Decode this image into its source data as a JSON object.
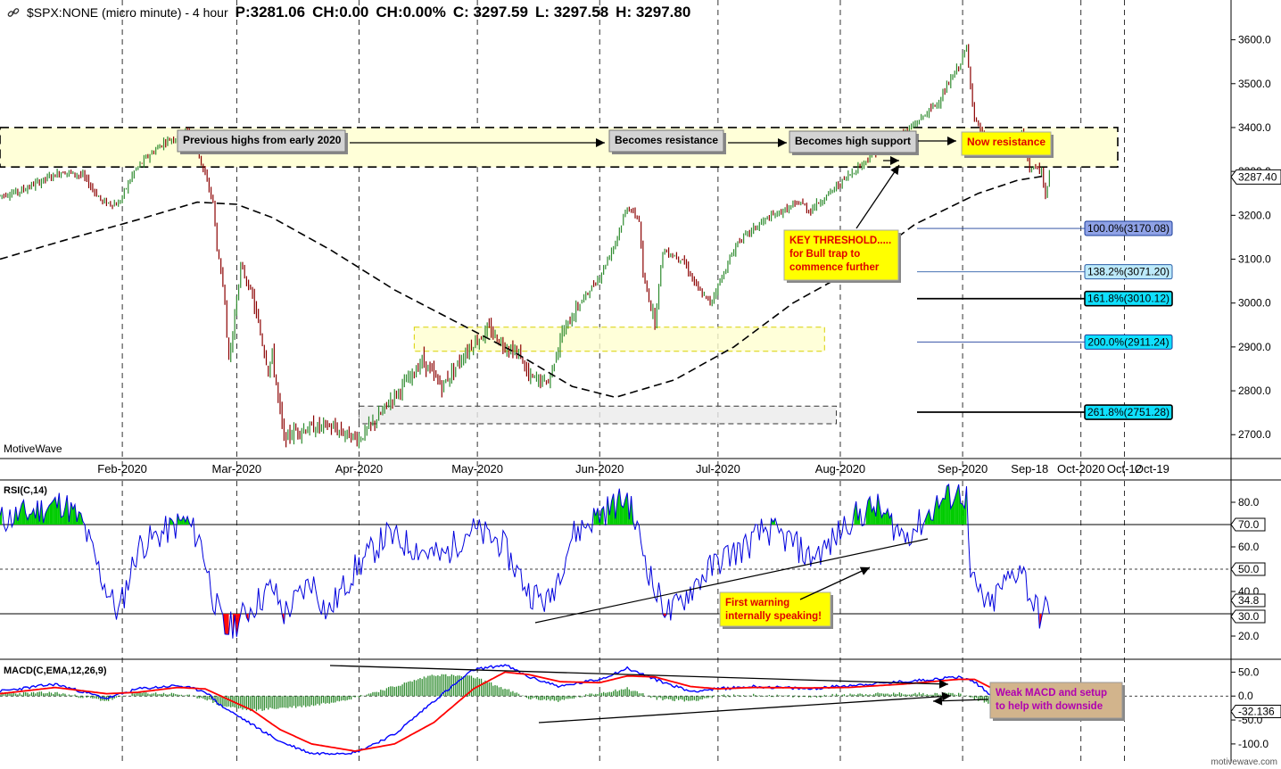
{
  "header": {
    "symbol": "$SPX:NONE (micro minute) - 4 hour",
    "p": "P:3281.06",
    "ch": "CH:0.00",
    "chpct": "CH:0.00%",
    "c": "C: 3297.59",
    "l": "L: 3297.58",
    "h": "H: 3297.80"
  },
  "brand": "MotiveWave",
  "site": "motivewave.com",
  "colors": {
    "price_up": "#2e8b2e",
    "price_down": "#8b0000",
    "rsi_line": "#0000dd",
    "rsi_overbought": "#00cc00",
    "rsi_oversold": "#ff0000",
    "macd_line": "#0000ff",
    "signal_line": "#ff0000",
    "histogram": "#2e8b2e",
    "callout_yellow": "#ffff00",
    "callout_gray": "#d3d3d3",
    "callout_tan": "#d2b48c"
  },
  "chart_data": [
    {
      "type": "candlestick",
      "panel": "price",
      "x_ticks": [
        "Feb-2020",
        "Mar-2020",
        "Apr-2020",
        "May-2020",
        "Jun-2020",
        "Jul-2020",
        "Aug-2020",
        "Sep-2020",
        "Sep-18",
        "Oct-2020",
        "Oct-12",
        "Oct-19"
      ],
      "y_ticks": [
        2700,
        2800,
        2900,
        3000,
        3100,
        3200,
        3300,
        3400,
        3500,
        3600
      ],
      "ylim": [
        2670,
        3650
      ],
      "price_path": [
        [
          "2020-01-01",
          3245
        ],
        [
          "2020-01-06",
          3255
        ],
        [
          "2020-01-13",
          3285
        ],
        [
          "2020-01-17",
          3300
        ],
        [
          "2020-01-22",
          3290
        ],
        [
          "2020-01-27",
          3230
        ],
        [
          "2020-01-31",
          3225
        ],
        [
          "2020-02-04",
          3300
        ],
        [
          "2020-02-07",
          3330
        ],
        [
          "2020-02-12",
          3370
        ],
        [
          "2020-02-14",
          3375
        ],
        [
          "2020-02-17",
          3390
        ],
        [
          "2020-02-19",
          3385
        ],
        [
          "2020-02-21",
          3320
        ],
        [
          "2020-02-24",
          3230
        ],
        [
          "2020-02-25",
          3125
        ],
        [
          "2020-02-27",
          3010
        ],
        [
          "2020-02-28",
          2860
        ],
        [
          "2020-03-02",
          3085
        ],
        [
          "2020-03-05",
          3015
        ],
        [
          "2020-03-06",
          2970
        ],
        [
          "2020-03-09",
          2850
        ],
        [
          "2020-03-10",
          2880
        ],
        [
          "2020-03-12",
          2750
        ],
        [
          "2020-03-13",
          2690
        ],
        [
          "2020-03-16",
          2710
        ],
        [
          "2020-03-24",
          2720
        ],
        [
          "2020-04-01",
          2690
        ],
        [
          "2020-04-06",
          2740
        ],
        [
          "2020-04-09",
          2780
        ],
        [
          "2020-04-14",
          2830
        ],
        [
          "2020-04-17",
          2870
        ],
        [
          "2020-04-22",
          2810
        ],
        [
          "2020-04-29",
          2900
        ],
        [
          "2020-05-04",
          2940
        ],
        [
          "2020-05-07",
          2910
        ],
        [
          "2020-05-12",
          2880
        ],
        [
          "2020-05-14",
          2830
        ],
        [
          "2020-05-19",
          2820
        ],
        [
          "2020-05-22",
          2920
        ],
        [
          "2020-05-27",
          3000
        ],
        [
          "2020-06-01",
          3060
        ],
        [
          "2020-06-05",
          3140
        ],
        [
          "2020-06-08",
          3220
        ],
        [
          "2020-06-11",
          3190
        ],
        [
          "2020-06-12",
          3060
        ],
        [
          "2020-06-15",
          2960
        ],
        [
          "2020-06-17",
          3120
        ],
        [
          "2020-06-22",
          3100
        ],
        [
          "2020-06-26",
          3030
        ],
        [
          "2020-06-29",
          3000
        ],
        [
          "2020-07-06",
          3140
        ],
        [
          "2020-07-13",
          3190
        ],
        [
          "2020-07-22",
          3230
        ],
        [
          "2020-07-24",
          3210
        ],
        [
          "2020-07-28",
          3240
        ],
        [
          "2020-08-03",
          3290
        ],
        [
          "2020-08-12",
          3360
        ],
        [
          "2020-08-19",
          3400
        ],
        [
          "2020-08-26",
          3460
        ],
        [
          "2020-08-31",
          3540
        ],
        [
          "2020-09-02",
          3580
        ],
        [
          "2020-09-03",
          3500
        ],
        [
          "2020-09-04",
          3420
        ],
        [
          "2020-09-08",
          3350
        ],
        [
          "2020-09-10",
          3380
        ],
        [
          "2020-09-14",
          3360
        ],
        [
          "2020-09-16",
          3390
        ],
        [
          "2020-09-18",
          3310
        ],
        [
          "2020-09-21",
          3300
        ],
        [
          "2020-09-22",
          3240
        ],
        [
          "2020-09-23",
          3290
        ]
      ],
      "moving_average": [
        [
          "2020-01-01",
          3100
        ],
        [
          "2020-01-20",
          3150
        ],
        [
          "2020-02-05",
          3190
        ],
        [
          "2020-02-20",
          3230
        ],
        [
          "2020-03-01",
          3225
        ],
        [
          "2020-03-10",
          3195
        ],
        [
          "2020-03-25",
          3120
        ],
        [
          "2020-04-10",
          3030
        ],
        [
          "2020-04-25",
          2960
        ],
        [
          "2020-05-10",
          2890
        ],
        [
          "2020-05-25",
          2810
        ],
        [
          "2020-06-05",
          2785
        ],
        [
          "2020-06-20",
          2825
        ],
        [
          "2020-07-05",
          2900
        ],
        [
          "2020-07-20",
          3000
        ],
        [
          "2020-08-05",
          3080
        ],
        [
          "2020-08-20",
          3180
        ],
        [
          "2020-09-05",
          3250
        ],
        [
          "2020-09-15",
          3280
        ],
        [
          "2020-09-22",
          3290
        ]
      ],
      "resistance_zone": {
        "from": 3310,
        "to": 3400
      },
      "zones": [
        {
          "from_date": "2020-04-15",
          "to_date": "2020-07-28",
          "low": 2890,
          "high": 2945
        },
        {
          "from_date": "2020-04-01",
          "to_date": "2020-07-31",
          "low": 2725,
          "high": 2765
        }
      ],
      "price_markers": [
        "3287.40"
      ],
      "fib_levels": [
        {
          "label": "100.0%(3170.08)",
          "value": 3170.08
        },
        {
          "label": "138.2%(3071.20)",
          "value": 3071.2
        },
        {
          "label": "161.8%(3010.12)",
          "value": 3010.12
        },
        {
          "label": "200.0%(2911.24)",
          "value": 2911.24
        },
        {
          "label": "261.8%(2751.28)",
          "value": 2751.28
        }
      ],
      "annotations": [
        "Previous highs from early 2020",
        "Becomes resistance",
        "Becomes high support",
        "Now resistance",
        "KEY THRESHOLD..... for Bull trap to commence further"
      ]
    },
    {
      "type": "line",
      "panel": "rsi",
      "title": "RSI(C,14)",
      "y_ticks": [
        20,
        30,
        40,
        50,
        60,
        70,
        80
      ],
      "ylim": [
        10,
        90
      ],
      "levels": [
        30,
        50,
        70
      ],
      "price_markers": [
        "70.0",
        "50.0",
        "34.8",
        "30.0"
      ],
      "rsi_path": [
        [
          "2020-01-01",
          72
        ],
        [
          "2020-01-08",
          75
        ],
        [
          "2020-01-17",
          80
        ],
        [
          "2020-01-22",
          70
        ],
        [
          "2020-01-27",
          45
        ],
        [
          "2020-01-31",
          30
        ],
        [
          "2020-02-05",
          60
        ],
        [
          "2020-02-10",
          65
        ],
        [
          "2020-02-17",
          72
        ],
        [
          "2020-02-21",
          62
        ],
        [
          "2020-02-24",
          38
        ],
        [
          "2020-02-27",
          22
        ],
        [
          "2020-03-02",
          28
        ],
        [
          "2020-03-06",
          35
        ],
        [
          "2020-03-10",
          42
        ],
        [
          "2020-03-13",
          30
        ],
        [
          "2020-03-16",
          36
        ],
        [
          "2020-03-20",
          45
        ],
        [
          "2020-03-24",
          30
        ],
        [
          "2020-03-31",
          50
        ],
        [
          "2020-04-08",
          65
        ],
        [
          "2020-04-15",
          60
        ],
        [
          "2020-04-22",
          55
        ],
        [
          "2020-04-29",
          68
        ],
        [
          "2020-05-07",
          62
        ],
        [
          "2020-05-14",
          40
        ],
        [
          "2020-05-19",
          35
        ],
        [
          "2020-05-25",
          65
        ],
        [
          "2020-06-01",
          75
        ],
        [
          "2020-06-08",
          82
        ],
        [
          "2020-06-11",
          65
        ],
        [
          "2020-06-15",
          40
        ],
        [
          "2020-06-19",
          30
        ],
        [
          "2020-06-26",
          45
        ],
        [
          "2020-07-02",
          55
        ],
        [
          "2020-07-08",
          60
        ],
        [
          "2020-07-13",
          68
        ],
        [
          "2020-07-20",
          62
        ],
        [
          "2020-07-24",
          55
        ],
        [
          "2020-07-29",
          60
        ],
        [
          "2020-08-03",
          72
        ],
        [
          "2020-08-10",
          78
        ],
        [
          "2020-08-17",
          65
        ],
        [
          "2020-08-21",
          70
        ],
        [
          "2020-08-26",
          80
        ],
        [
          "2020-08-31",
          85
        ],
        [
          "2020-09-02",
          82
        ],
        [
          "2020-09-03",
          45
        ],
        [
          "2020-09-08",
          32
        ],
        [
          "2020-09-10",
          40
        ],
        [
          "2020-09-14",
          48
        ],
        [
          "2020-09-16",
          52
        ],
        [
          "2020-09-18",
          38
        ],
        [
          "2020-09-21",
          28
        ],
        [
          "2020-09-23",
          34.8
        ]
      ],
      "annotations": [
        "First warning internally speaking!"
      ]
    },
    {
      "type": "line",
      "panel": "macd",
      "title": "MACD(C,EMA,12,26,9)",
      "y_ticks": [
        -100,
        -50,
        0,
        50
      ],
      "ylim": [
        -130,
        75
      ],
      "price_markers": [
        "-32.136"
      ],
      "macd_path": [
        [
          "2020-01-01",
          10
        ],
        [
          "2020-01-15",
          25
        ],
        [
          "2020-01-28",
          -5
        ],
        [
          "2020-02-05",
          15
        ],
        [
          "2020-02-15",
          22
        ],
        [
          "2020-02-22",
          10
        ],
        [
          "2020-02-26",
          -20
        ],
        [
          "2020-03-05",
          -60
        ],
        [
          "2020-03-12",
          -95
        ],
        [
          "2020-03-20",
          -120
        ],
        [
          "2020-03-31",
          -118
        ],
        [
          "2020-04-10",
          -80
        ],
        [
          "2020-04-20",
          -10
        ],
        [
          "2020-04-30",
          55
        ],
        [
          "2020-05-08",
          65
        ],
        [
          "2020-05-14",
          40
        ],
        [
          "2020-05-22",
          20
        ],
        [
          "2020-06-01",
          35
        ],
        [
          "2020-06-08",
          58
        ],
        [
          "2020-06-15",
          35
        ],
        [
          "2020-06-24",
          10
        ],
        [
          "2020-07-01",
          15
        ],
        [
          "2020-07-10",
          20
        ],
        [
          "2020-07-24",
          15
        ],
        [
          "2020-08-03",
          22
        ],
        [
          "2020-08-17",
          30
        ],
        [
          "2020-08-31",
          40
        ],
        [
          "2020-09-04",
          30
        ],
        [
          "2020-09-10",
          -10
        ],
        [
          "2020-09-16",
          -20
        ],
        [
          "2020-09-23",
          -32.136
        ]
      ],
      "signal_path": [
        [
          "2020-01-01",
          5
        ],
        [
          "2020-01-15",
          18
        ],
        [
          "2020-01-28",
          5
        ],
        [
          "2020-02-05",
          8
        ],
        [
          "2020-02-15",
          18
        ],
        [
          "2020-02-22",
          15
        ],
        [
          "2020-02-26",
          0
        ],
        [
          "2020-03-05",
          -30
        ],
        [
          "2020-03-12",
          -70
        ],
        [
          "2020-03-20",
          -100
        ],
        [
          "2020-03-31",
          -115
        ],
        [
          "2020-04-10",
          -100
        ],
        [
          "2020-04-20",
          -55
        ],
        [
          "2020-04-30",
          15
        ],
        [
          "2020-05-08",
          50
        ],
        [
          "2020-05-14",
          45
        ],
        [
          "2020-05-22",
          30
        ],
        [
          "2020-06-01",
          28
        ],
        [
          "2020-06-08",
          42
        ],
        [
          "2020-06-15",
          40
        ],
        [
          "2020-06-24",
          20
        ],
        [
          "2020-07-01",
          15
        ],
        [
          "2020-07-10",
          18
        ],
        [
          "2020-07-24",
          17
        ],
        [
          "2020-08-03",
          18
        ],
        [
          "2020-08-17",
          25
        ],
        [
          "2020-08-31",
          35
        ],
        [
          "2020-09-04",
          35
        ],
        [
          "2020-09-10",
          10
        ],
        [
          "2020-09-16",
          -10
        ],
        [
          "2020-09-23",
          -22
        ]
      ],
      "annotations": [
        "Weak MACD and setup to help with downside"
      ]
    }
  ]
}
